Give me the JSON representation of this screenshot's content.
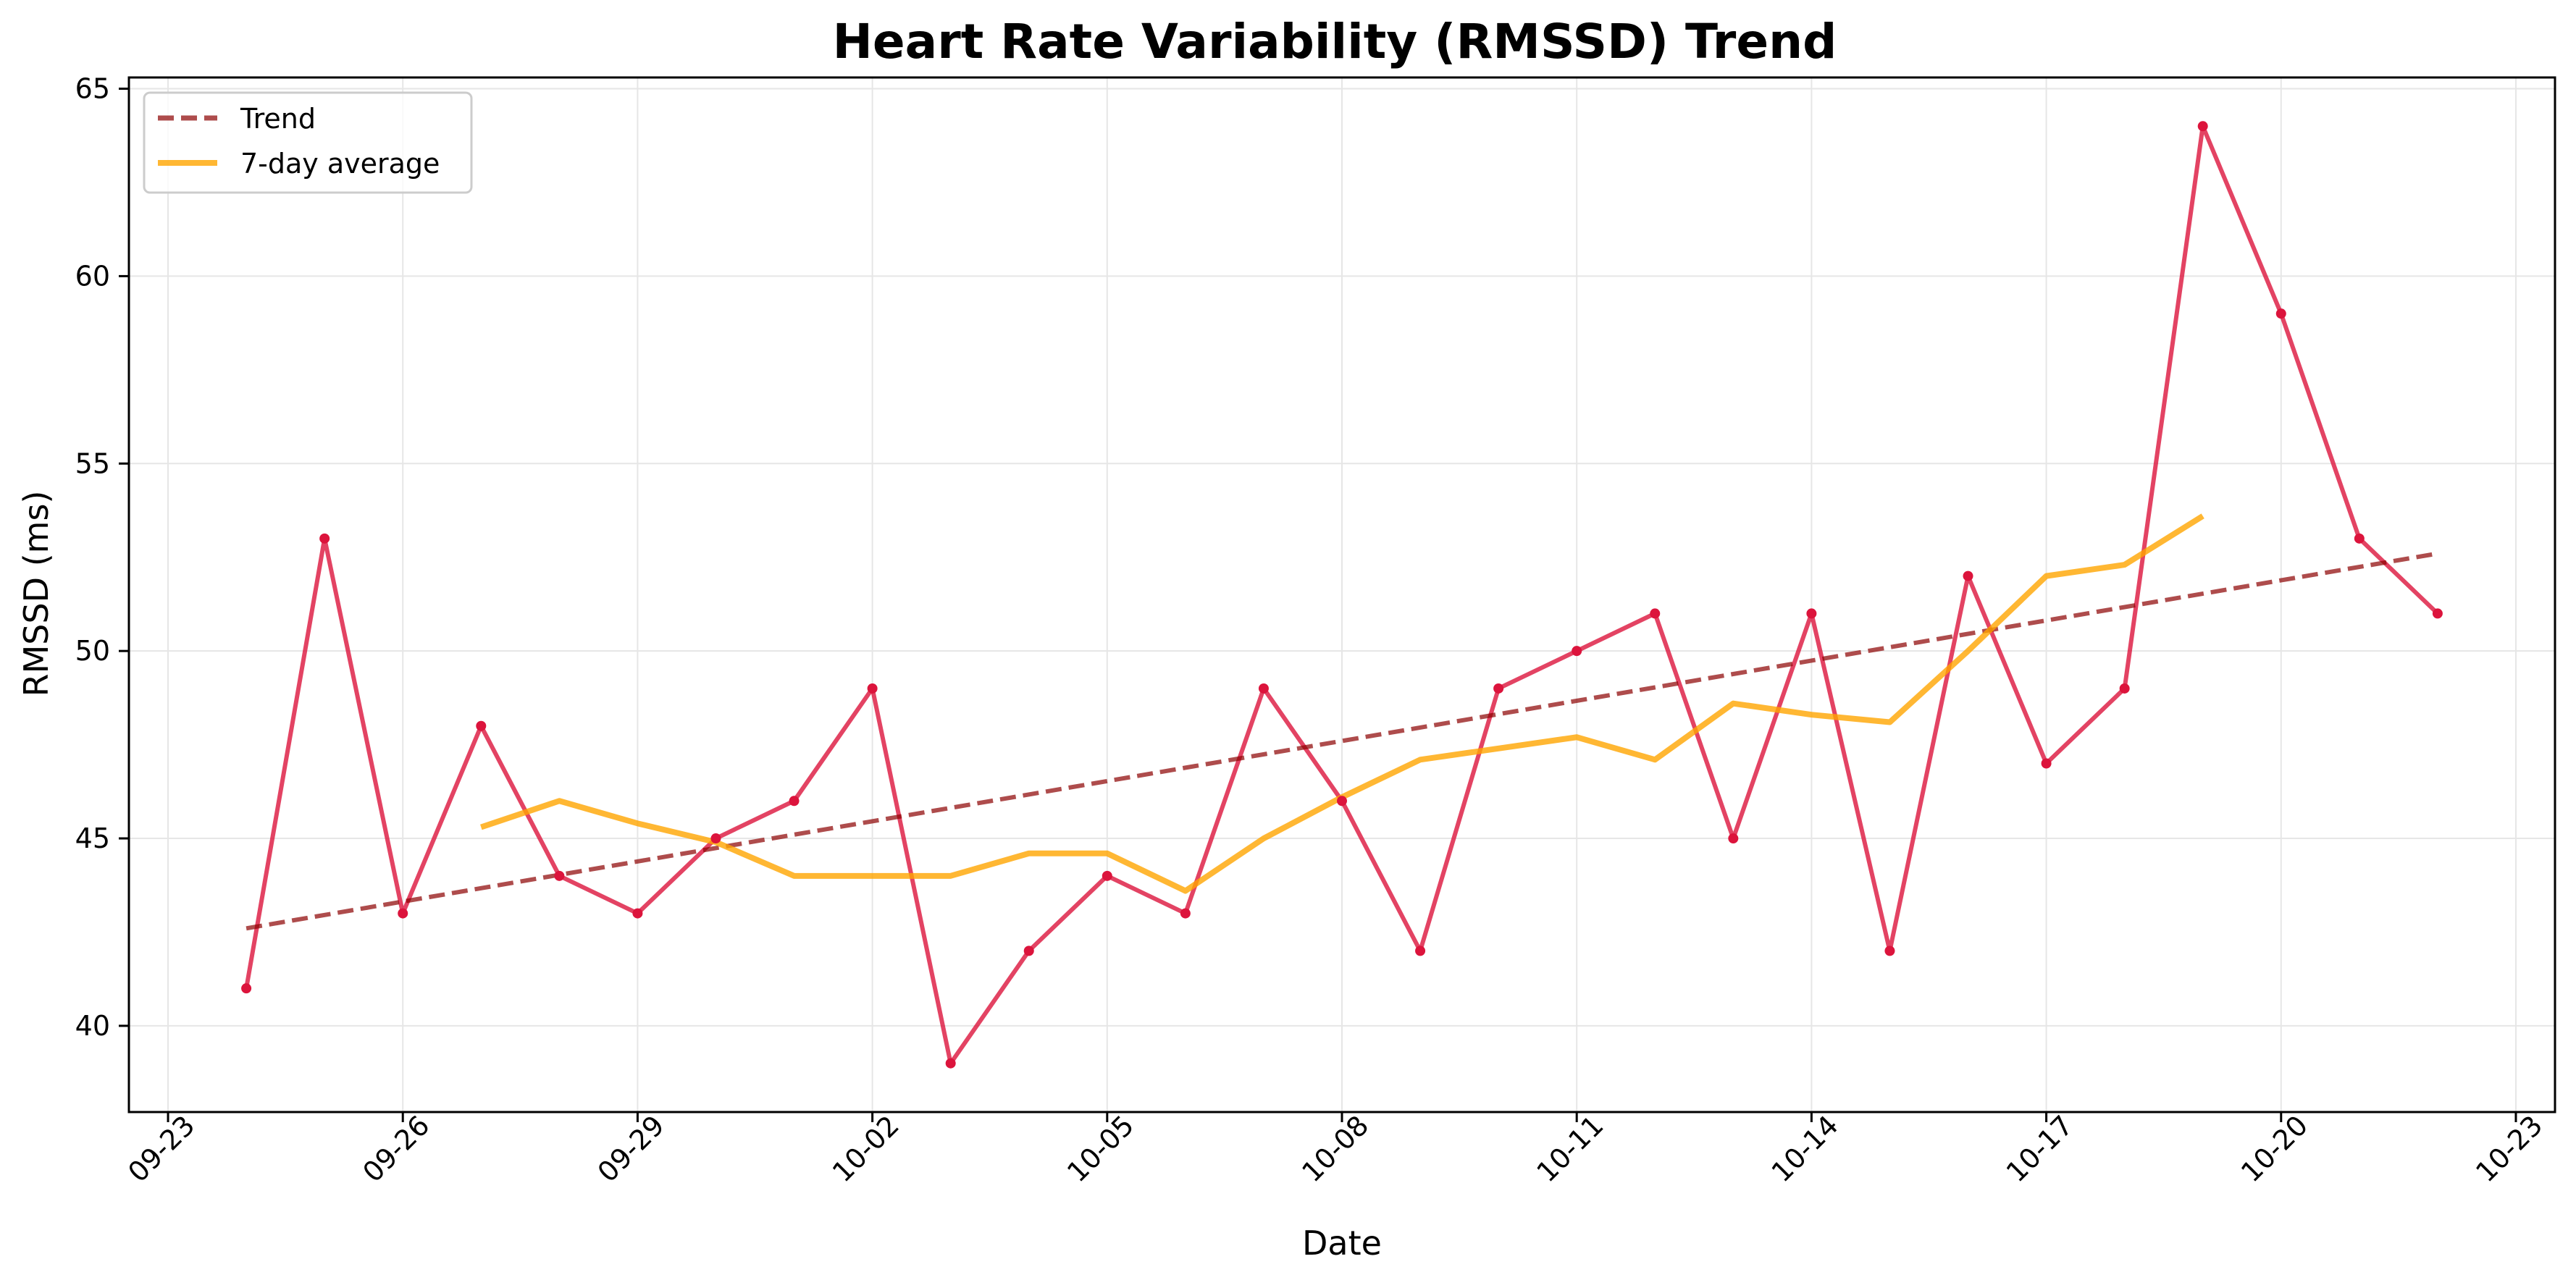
{
  "colors": {
    "daily": "#dc143c",
    "trend": "#8b0000",
    "rolling": "#ffa500",
    "grid": "#e6e6e6"
  },
  "chart_data": {
    "type": "line",
    "title": "Heart Rate Variability (RMSSD) Trend",
    "xlabel": "Date",
    "ylabel": "RMSSD (ms)",
    "grid": true,
    "legend_position": "top-left",
    "x_dates": [
      "09-24",
      "09-25",
      "09-26",
      "09-27",
      "09-28",
      "09-29",
      "09-30",
      "10-01",
      "10-02",
      "10-03",
      "10-04",
      "10-05",
      "10-06",
      "10-07",
      "10-08",
      "10-09",
      "10-10",
      "10-11",
      "10-12",
      "10-13",
      "10-14",
      "10-15",
      "10-16",
      "10-17",
      "10-18",
      "10-19",
      "10-20",
      "10-21",
      "10-22"
    ],
    "x_ticks": [
      "09-23",
      "09-26",
      "09-29",
      "10-02",
      "10-05",
      "10-08",
      "10-11",
      "10-14",
      "10-17",
      "10-20",
      "10-23"
    ],
    "y_ticks": [
      40,
      45,
      50,
      55,
      60,
      65
    ],
    "ylim": [
      37.7,
      65.3
    ],
    "series": [
      {
        "key": "daily",
        "style": "line-with-markers",
        "values": [
          41,
          53,
          43,
          48,
          44,
          43,
          45,
          46,
          49,
          39,
          42,
          44,
          43,
          49,
          46,
          42,
          49,
          50,
          51,
          45,
          51,
          42,
          52,
          47,
          49,
          64,
          59,
          53,
          51
        ]
      },
      {
        "key": "rolling",
        "name": "7-day average",
        "style": "solid",
        "values": [
          null,
          null,
          null,
          45.3,
          46.0,
          45.4,
          44.9,
          44.0,
          44.0,
          44.0,
          44.6,
          44.6,
          43.6,
          45.0,
          46.1,
          47.1,
          47.4,
          47.7,
          47.1,
          48.6,
          48.3,
          48.1,
          50.0,
          52.0,
          52.3,
          53.6,
          null,
          null,
          null
        ]
      },
      {
        "key": "trend",
        "name": "Trend",
        "style": "dashed",
        "values": [
          42.6,
          52.6
        ],
        "x_range": [
          "09-24",
          "10-22"
        ]
      }
    ]
  }
}
